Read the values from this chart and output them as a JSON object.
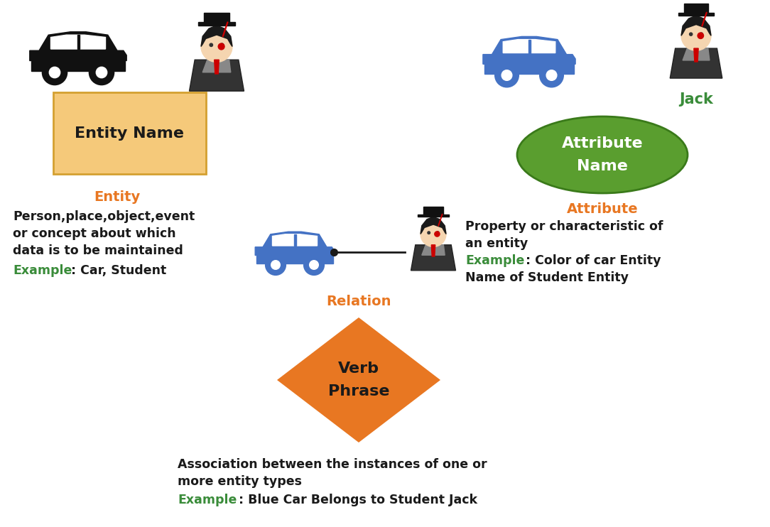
{
  "bg_color": "#ffffff",
  "orange_color": "#E87722",
  "green_color": "#3a8c3a",
  "black_color": "#1a1a1a",
  "entity_box_color": "#F5C97A",
  "entity_box_edge": "#D4A030",
  "attribute_ellipse_color": "#5a9e2f",
  "relation_diamond_color": "#E87722",
  "blue_car_color": "#4472c4",
  "entity_label": "Entity Name",
  "attribute_label": "Attribute\nName",
  "relation_label": "Verb\nPhrase",
  "entity_title": "Entity",
  "entity_desc1": "Person,place,object,event",
  "entity_desc2": "or concept about which",
  "entity_desc3": "data is to be maintained",
  "entity_example_label": "Example",
  "entity_example_text": ": Car, Student",
  "attribute_title": "Attribute",
  "attribute_desc1": "Property or characteristic of",
  "attribute_desc2": "an entity",
  "attribute_example_label": "Example",
  "attribute_example_text": ": Color of car Entity",
  "attribute_desc3": "Name of Student Entity",
  "jack_label": "Jack",
  "relation_title": "Relation",
  "relation_desc1": "Association between the instances of one or",
  "relation_desc2": "more entity types",
  "relation_example_label": "Example",
  "relation_example_text": ": Blue Car Belongs to Student Jack"
}
